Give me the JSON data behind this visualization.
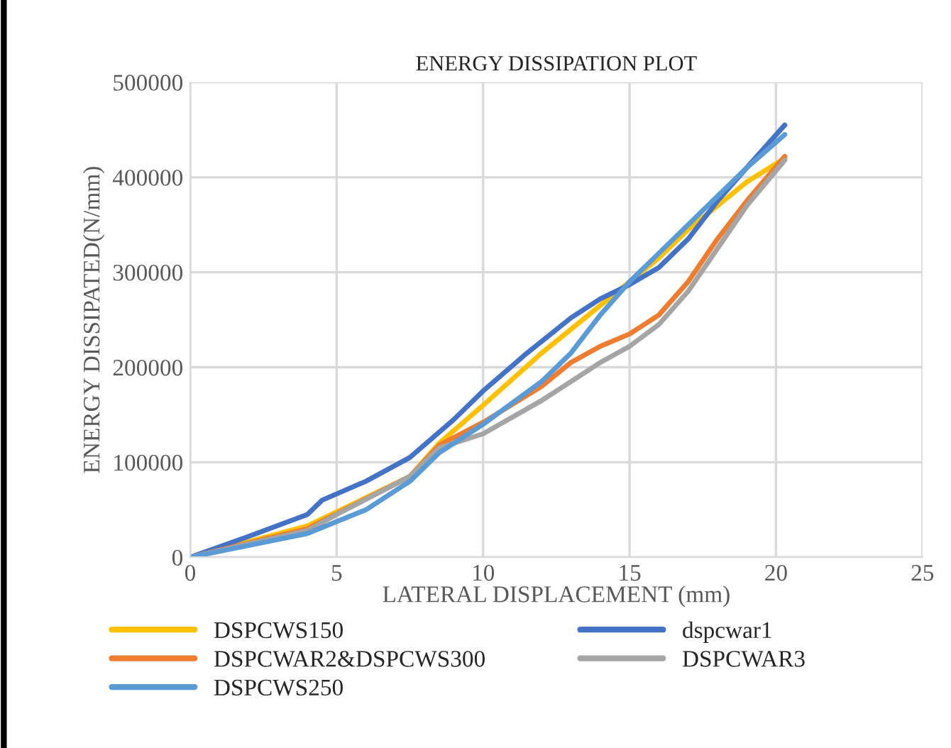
{
  "chart_data": {
    "type": "line",
    "title": "ENERGY DISSIPATION PLOT",
    "xlabel": "LATERAL DISPLACEMENT (mm)",
    "ylabel": "ENERGY DISSIPATED(N/mm)",
    "xlim": [
      0,
      25
    ],
    "xticks": [
      0,
      5,
      10,
      15,
      20,
      25
    ],
    "ylim": [
      0,
      500000
    ],
    "yticks": [
      0,
      100000,
      200000,
      300000,
      400000,
      500000
    ],
    "grid": true,
    "legend": "bottom",
    "marker": "none",
    "line_style": "solid",
    "series": [
      {
        "name": "DSPCWS150",
        "color": "#ffc000",
        "x": [
          0,
          4,
          7.5,
          8.5,
          10,
          12,
          14,
          15,
          16,
          17,
          18,
          19,
          20.3
        ],
        "values": [
          0,
          33000,
          85000,
          120000,
          160000,
          215000,
          265000,
          290000,
          315000,
          345000,
          370000,
          395000,
          420000
        ]
      },
      {
        "name": "dspcwar1",
        "color": "#4472c4",
        "x": [
          0,
          2,
          4,
          4.5,
          6,
          7.5,
          9,
          10,
          11.5,
          13,
          14,
          15,
          16,
          17,
          18,
          19,
          20.3
        ],
        "values": [
          0,
          22000,
          45000,
          60000,
          80000,
          105000,
          145000,
          175000,
          215000,
          252000,
          272000,
          287000,
          305000,
          335000,
          375000,
          410000,
          455000
        ]
      },
      {
        "name": "DSPCWAR2&DSPCWS300",
        "color": "#ed7d31",
        "x": [
          0,
          4,
          7.5,
          8.5,
          10,
          12,
          13,
          14,
          15,
          16,
          17,
          18,
          19,
          20.3
        ],
        "values": [
          0,
          30000,
          85000,
          118000,
          142000,
          180000,
          205000,
          222000,
          235000,
          255000,
          290000,
          335000,
          375000,
          422000
        ]
      },
      {
        "name": "DSPCWAR3",
        "color": "#a5a5a5",
        "x": [
          0,
          4,
          5,
          7.5,
          8.5,
          10,
          12,
          13,
          14,
          15,
          16,
          17,
          18,
          19,
          20.3
        ],
        "values": [
          0,
          28000,
          45000,
          85000,
          115000,
          130000,
          165000,
          185000,
          205000,
          222000,
          245000,
          280000,
          325000,
          370000,
          418000
        ]
      },
      {
        "name": "DSPCWS250",
        "color": "#5b9bd5",
        "x": [
          0,
          4,
          6,
          7.5,
          8.5,
          10,
          12,
          13,
          14,
          15,
          16,
          17,
          18,
          19,
          20.3
        ],
        "values": [
          0,
          25000,
          50000,
          80000,
          110000,
          140000,
          185000,
          215000,
          255000,
          290000,
          320000,
          350000,
          380000,
          410000,
          445000
        ]
      }
    ]
  }
}
